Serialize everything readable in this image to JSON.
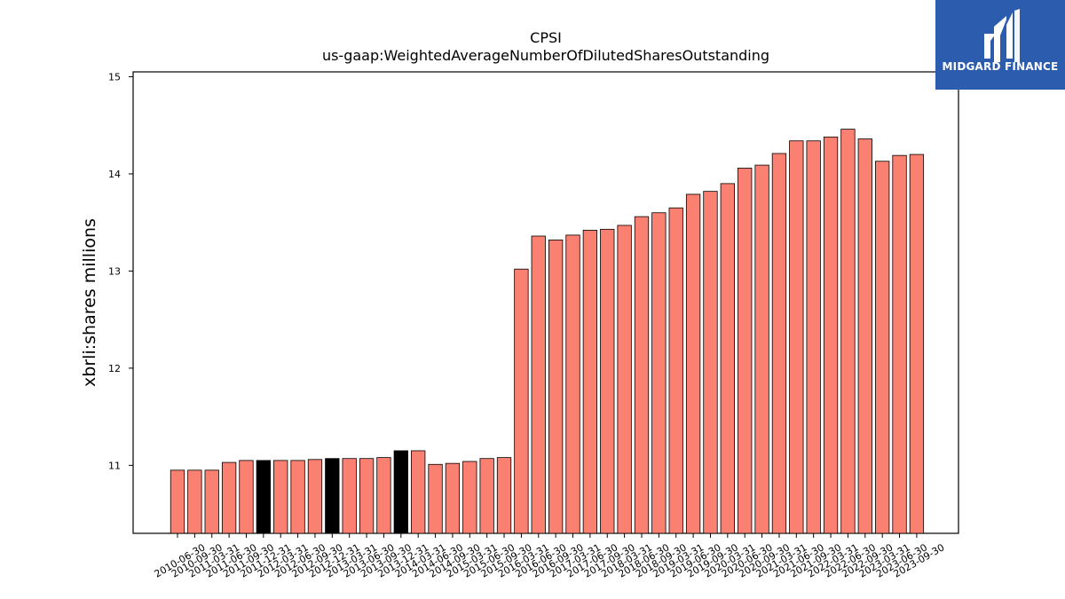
{
  "logo": {
    "text": "MIDGARD FINANCE",
    "icon": "midgard-m-logo-icon",
    "background": "#2b5cad"
  },
  "chart_data": {
    "type": "bar",
    "title": "CPSI",
    "subtitle": "us-gaap:WeightedAverageNumberOfDilutedSharesOutstanding",
    "xlabel": "",
    "ylabel": "xbrli:shares millions",
    "ylim": [
      10.3,
      15.05
    ],
    "yticks": [
      11,
      12,
      13,
      14,
      15
    ],
    "grid": false,
    "legend": "none",
    "bar_color": "#fa8072",
    "highlight_color": "#000000",
    "categories": [
      "2010-06-30",
      "2010-09-30",
      "2011-03-31",
      "2011-06-30",
      "2011-09-30",
      "2011-12-31",
      "2012-03-31",
      "2012-06-30",
      "2012-09-30",
      "2012-12-31",
      "2013-03-31",
      "2013-06-30",
      "2013-09-30",
      "2013-12-31",
      "2014-03-31",
      "2014-06-30",
      "2014-09-30",
      "2015-03-31",
      "2015-06-30",
      "2015-09-30",
      "2016-03-31",
      "2016-06-30",
      "2016-09-30",
      "2017-03-31",
      "2017-06-30",
      "2017-09-30",
      "2018-03-31",
      "2018-06-30",
      "2018-09-30",
      "2019-03-31",
      "2019-06-30",
      "2019-09-30",
      "2020-03-31",
      "2020-06-30",
      "2020-09-30",
      "2021-03-31",
      "2021-06-30",
      "2021-09-30",
      "2022-03-31",
      "2022-06-30",
      "2022-09-30",
      "2023-03-31",
      "2023-06-30",
      "2023-09-30"
    ],
    "values": [
      10.95,
      10.95,
      10.95,
      11.03,
      11.05,
      11.05,
      11.05,
      11.05,
      11.06,
      11.07,
      11.07,
      11.07,
      11.08,
      11.15,
      11.15,
      11.01,
      11.02,
      11.04,
      11.07,
      11.08,
      13.02,
      13.36,
      13.32,
      13.37,
      13.42,
      13.43,
      13.47,
      13.56,
      13.6,
      13.65,
      13.79,
      13.82,
      13.9,
      14.06,
      14.09,
      14.21,
      14.34,
      14.34,
      14.38,
      14.46,
      14.36,
      14.13,
      14.19,
      14.2
    ],
    "highlighted_indices": [
      5,
      9,
      13
    ]
  }
}
